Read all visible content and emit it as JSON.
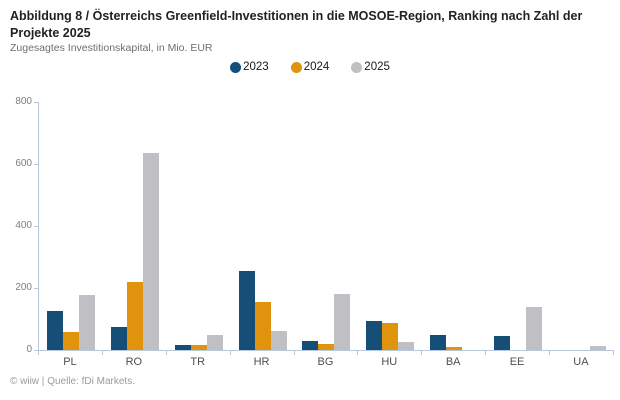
{
  "chart_data": {
    "type": "bar",
    "title": "Abbildung 8 / Österreichs Greenfield-Investitionen in die MOSOE-Region, Ranking nach Zahl der Projekte 2025",
    "subtitle": "Zugesagtes Investitionskapital, in Mio. EUR",
    "source": "© wiiw | Quelle: fDi Markets.",
    "categories": [
      "PL",
      "RO",
      "TR",
      "HR",
      "BG",
      "HU",
      "BA",
      "EE",
      "UA"
    ],
    "series": [
      {
        "name": "2023",
        "color": "#154f78",
        "values": [
          125,
          75,
          17,
          255,
          30,
          95,
          50,
          46,
          0
        ]
      },
      {
        "name": "2024",
        "color": "#e0940e",
        "values": [
          57,
          220,
          16,
          155,
          18,
          87,
          11,
          0,
          0
        ]
      },
      {
        "name": "2025",
        "color": "#bfbfc4",
        "values": [
          176,
          637,
          50,
          62,
          181,
          26,
          0,
          140,
          13
        ]
      }
    ],
    "xlabel": "",
    "ylabel": "",
    "ylim": [
      0,
      800
    ],
    "yticks": [
      0,
      200,
      400,
      600,
      800
    ],
    "grid": false,
    "legend_position": "top-center",
    "axis_color": "#b7c8dc"
  }
}
